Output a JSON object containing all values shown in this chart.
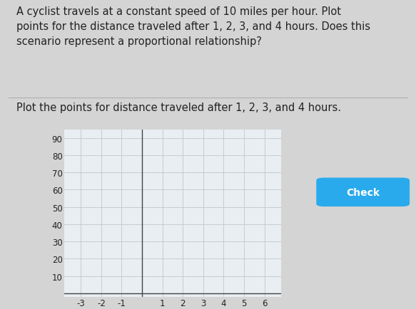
{
  "title_text": "A cyclist travels at a constant speed of 10 miles per hour. Plot\npoints for the distance traveled after 1, 2, 3, and 4 hours. Does this\nscenario represent a proportional relationship?",
  "subtitle_text": "Plot the points for distance traveled after 1, 2, 3, and 4 hours.",
  "x_ticks": [
    -3,
    -2,
    -1,
    1,
    2,
    3,
    4,
    5,
    6
  ],
  "y_ticks": [
    10,
    20,
    30,
    40,
    50,
    60,
    70,
    80,
    90
  ],
  "xlim": [
    -3.8,
    6.8
  ],
  "ylim": [
    -2,
    95
  ],
  "x_tick_labels": [
    "-3",
    "-2",
    "-1",
    "1",
    "2",
    "3",
    "4",
    "5",
    "6"
  ],
  "y_tick_labels": [
    "10",
    "20",
    "30",
    "40",
    "50",
    "60",
    "70",
    "80",
    "90"
  ],
  "background_color": "#d4d4d4",
  "plot_bg_color": "#e8eef2",
  "grid_color": "#c0c8cc",
  "axis_line_color": "#444444",
  "check_button_color": "#29aaed",
  "check_button_text": "Check",
  "check_button_text_color": "#ffffff",
  "title_fontsize": 10.5,
  "subtitle_fontsize": 10.5,
  "tick_fontsize": 8.5,
  "text_color": "#222222"
}
